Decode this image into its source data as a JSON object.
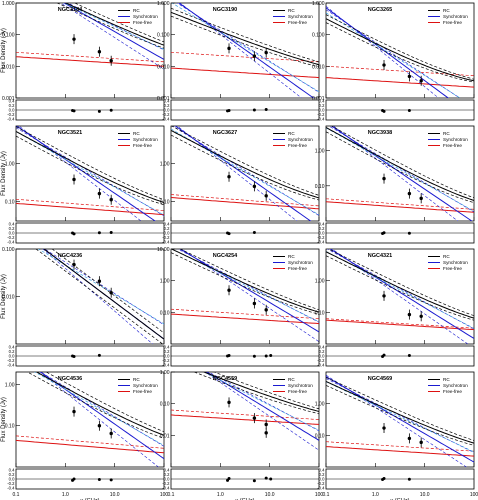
{
  "figure": {
    "ylabel": "Flux Density (Jy)",
    "xlabel": "ν (GHz)",
    "legend": [
      "RC",
      "Synchrotron",
      "Free-free"
    ],
    "colors": {
      "rc": "#000000",
      "sync": "#1a1ad0",
      "ff": "#dd1111",
      "fit_alt": "#3aa0e0",
      "axis": "#000000"
    },
    "x_ticks": [
      "0.1",
      "1.0",
      "10.0",
      "100"
    ],
    "resid_ticks": [
      "0.4",
      "0.2",
      "0.0",
      "-0.2",
      "-0.4"
    ]
  },
  "chart_data": [
    {
      "type": "scatter",
      "title": "NGC3184",
      "xlim": [
        0.1,
        100
      ],
      "ylim": [
        0.001,
        1.0
      ],
      "log": true,
      "yticks": [
        "1.000",
        "0.100",
        "0.010",
        "0.001"
      ],
      "legend": true,
      "rc": [
        1.0,
        -0.72
      ],
      "sync": [
        0.95,
        -0.88
      ],
      "ff": [
        0.016,
        -0.1
      ],
      "ff_dash": [
        0.022,
        -0.1
      ],
      "points": [
        [
          1.5,
          0.072
        ],
        [
          4.9,
          0.029
        ],
        [
          8.5,
          0.015
        ]
      ],
      "residuals": [
        -0.02,
        -0.04,
        -0.06,
        -0.01
      ]
    },
    {
      "type": "scatter",
      "title": "NGC3190",
      "xlim": [
        0.1,
        100
      ],
      "ylim": [
        0.001,
        1.0
      ],
      "log": true,
      "yticks": [
        "1.000",
        "0.100",
        "0.010",
        "0.001"
      ],
      "legend": true,
      "rc": [
        0.12,
        -0.62
      ],
      "sync": [
        0.12,
        -1.1
      ],
      "ff": [
        0.007,
        -0.1
      ],
      "ff_dash": [
        0.022,
        -0.1
      ],
      "points": [
        [
          1.5,
          0.037
        ],
        [
          4.9,
          0.021
        ],
        [
          8.5,
          0.027
        ]
      ],
      "residuals": [
        -0.04,
        -0.02,
        0.0,
        0.02
      ]
    },
    {
      "type": "scatter",
      "title": "NGC3265",
      "xlim": [
        0.1,
        100
      ],
      "ylim": [
        0.001,
        1.0
      ],
      "log": true,
      "yticks": [
        "1.000",
        "0.100",
        "0.010",
        "0.001"
      ],
      "legend": true,
      "rc": [
        0.05,
        -0.8
      ],
      "sync": [
        0.05,
        -1.15
      ],
      "ff": [
        0.0035,
        -0.1
      ],
      "ff_dash": [
        0.008,
        -0.1
      ],
      "points": [
        [
          1.5,
          0.011
        ],
        [
          4.9,
          0.0048
        ],
        [
          8.5,
          0.0035
        ]
      ],
      "residuals": [
        -0.02,
        -0.06,
        -0.02
      ]
    },
    {
      "type": "scatter",
      "title": "NGC3521",
      "xlim": [
        0.1,
        100
      ],
      "ylim": [
        0.03,
        10
      ],
      "log": true,
      "yticks": [
        "1.00",
        "0.10"
      ],
      "legend": true,
      "rc": [
        1.35,
        -0.72
      ],
      "sync": [
        1.3,
        -0.9
      ],
      "ff": [
        0.07,
        -0.1
      ],
      "ff_dash": [
        0.09,
        -0.1
      ],
      "points": [
        [
          1.5,
          0.38
        ],
        [
          4.9,
          0.16
        ],
        [
          8.5,
          0.11
        ]
      ],
      "residuals": [
        0.0,
        -0.04,
        0.01,
        0.02
      ]
    },
    {
      "type": "scatter",
      "title": "NGC3627",
      "xlim": [
        0.1,
        100
      ],
      "ylim": [
        0.03,
        10
      ],
      "log": true,
      "yticks": [
        "1.00",
        "0.10"
      ],
      "legend": true,
      "rc": [
        1.5,
        -0.7
      ],
      "sync": [
        1.45,
        -0.92
      ],
      "ff": [
        0.1,
        -0.1
      ],
      "ff_dash": [
        0.12,
        -0.1
      ],
      "points": [
        [
          1.5,
          0.45
        ],
        [
          4.9,
          0.25
        ],
        [
          8.5,
          0.14
        ]
      ],
      "residuals": [
        0.0,
        -0.03,
        0.02
      ]
    },
    {
      "type": "scatter",
      "title": "NGC3938",
      "xlim": [
        0.1,
        100
      ],
      "ylim": [
        0.01,
        5
      ],
      "log": true,
      "yticks": [
        "1.00",
        "0.10"
      ],
      "legend": true,
      "rc": [
        0.75,
        -0.78
      ],
      "sync": [
        0.72,
        -0.95
      ],
      "ff": [
        0.028,
        -0.1
      ],
      "ff_dash": [
        0.034,
        -0.1
      ],
      "points": [
        [
          1.5,
          0.16
        ],
        [
          4.9,
          0.06
        ],
        [
          8.5,
          0.044
        ]
      ],
      "residuals": [
        -0.02,
        0.01,
        -0.01
      ]
    },
    {
      "type": "scatter",
      "title": "NGC4236",
      "xlim": [
        0.1,
        100
      ],
      "ylim": [
        0.001,
        0.1
      ],
      "log": true,
      "yticks": [
        "0.100",
        "0.010"
      ],
      "legend": false,
      "rc": [
        0.046,
        -0.78
      ],
      "sync": [
        0.046,
        -0.78
      ],
      "ff": null,
      "ff_dash": null,
      "points": [
        [
          1.5,
          0.047
        ],
        [
          4.9,
          0.021
        ],
        [
          8.5,
          0.012
        ]
      ],
      "residuals": [
        0.0,
        -0.02,
        0.03
      ]
    },
    {
      "type": "scatter",
      "title": "NGC4254",
      "xlim": [
        0.1,
        100
      ],
      "ylim": [
        0.01,
        10
      ],
      "log": true,
      "yticks": [
        "10.00",
        "1.00",
        "0.10"
      ],
      "legend": true,
      "rc": [
        1.8,
        -0.75
      ],
      "sync": [
        1.75,
        -0.93
      ],
      "ff": [
        0.07,
        -0.1
      ],
      "ff_dash": [
        0.1,
        -0.1
      ],
      "points": [
        [
          1.5,
          0.5
        ],
        [
          4.9,
          0.19
        ],
        [
          8.5,
          0.12
        ]
      ],
      "residuals": [
        0.0,
        0.02,
        -0.01,
        0.0,
        0.02
      ]
    },
    {
      "type": "scatter",
      "title": "NGC4321",
      "xlim": [
        0.1,
        100
      ],
      "ylim": [
        0.01,
        10
      ],
      "log": true,
      "yticks": [
        "1.00",
        "0.10"
      ],
      "legend": true,
      "rc": [
        1.35,
        -0.78
      ],
      "sync": [
        1.3,
        -0.97
      ],
      "ff": [
        0.045,
        -0.1
      ],
      "ff_dash": [
        0.05,
        -0.1
      ],
      "points": [
        [
          1.5,
          0.33
        ],
        [
          4.9,
          0.085
        ],
        [
          8.5,
          0.075
        ]
      ],
      "residuals": [
        -0.02,
        0.04,
        0.02
      ]
    },
    {
      "type": "scatter",
      "title": "NGC4536",
      "xlim": [
        0.1,
        100
      ],
      "ylim": [
        0.01,
        2
      ],
      "log": true,
      "yticks": [
        "1.00",
        "0.10"
      ],
      "legend": true,
      "rc": [
        0.8,
        -0.67
      ],
      "sync": [
        0.76,
        -0.84
      ],
      "ff": [
        0.035,
        -0.1
      ],
      "ff_dash": [
        0.045,
        -0.1
      ],
      "points": [
        [
          1.5,
          0.22
        ],
        [
          4.9,
          0.1
        ],
        [
          8.5,
          0.065
        ]
      ],
      "residuals": [
        -0.06,
        0.0,
        -0.02,
        -0.04
      ]
    },
    {
      "type": "scatter",
      "title": "NGC4559",
      "xlim": [
        0.1,
        100
      ],
      "ylim": [
        0.001,
        1.0
      ],
      "log": true,
      "yticks": [
        "1.00",
        "0.10",
        "0.01"
      ],
      "legend": true,
      "rc": [
        0.6,
        -0.62
      ],
      "sync": [
        0.55,
        -0.95
      ],
      "ff": [
        0.035,
        -0.1
      ],
      "ff_dash": [
        0.05,
        -0.1
      ],
      "points": [
        [
          1.5,
          0.11
        ],
        [
          4.9,
          0.035
        ],
        [
          8.5,
          0.022
        ],
        [
          8.5,
          0.012
        ]
      ],
      "residuals": [
        -0.06,
        0.02,
        -0.08,
        0.04,
        0.0
      ]
    },
    {
      "type": "scatter",
      "title": "NGC4569",
      "xlim": [
        0.1,
        100
      ],
      "ylim": [
        0.01,
        10
      ],
      "log": true,
      "yticks": [
        "1.00",
        "0.10"
      ],
      "legend": true,
      "rc": [
        0.95,
        -0.72
      ],
      "sync": [
        0.9,
        -0.9
      ],
      "ff": [
        0.035,
        -0.1
      ],
      "ff_dash": [
        0.05,
        -0.1
      ],
      "points": [
        [
          1.5,
          0.17
        ],
        [
          4.9,
          0.08
        ],
        [
          8.5,
          0.06
        ]
      ],
      "residuals": [
        -0.02,
        0.02,
        -0.01
      ]
    }
  ]
}
